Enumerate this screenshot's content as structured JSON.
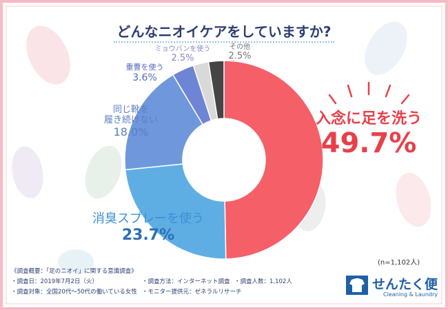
{
  "chart_data": {
    "type": "pie",
    "title": "どんなニオイケアをしていますか?",
    "categories": [
      "入念に足を洗う",
      "消臭スプレーを使う",
      "同じ靴を\n履き続けない",
      "重曹を使う",
      "ミョウバンを使う",
      "その他"
    ],
    "values": [
      49.7,
      23.7,
      18.0,
      3.6,
      2.5,
      2.5
    ],
    "value_labels": [
      "49.7%",
      "23.7%",
      "18.0%",
      "3.6%",
      "2.5%",
      "2.5%"
    ],
    "colors": [
      "#f55f68",
      "#5eaee3",
      "#6f98dc",
      "#6e84d4",
      "#d9d9d9",
      "#454545"
    ],
    "note": "(n=1,102人)"
  },
  "footer": {
    "heading": "《調査概要：「足のニオイ」に関する意識調査》",
    "items": [
      "・調査日：2019年7月2日（火）",
      "・調査方法：インターネット調査",
      "・調査人数：1,102人",
      "・調査対象：全国20代～50代の働いている女性",
      "・モニター提供元：ゼネラルリサーチ"
    ]
  },
  "logo": {
    "name": "せんたく便",
    "tagline": "Cleaning & Laundry"
  }
}
